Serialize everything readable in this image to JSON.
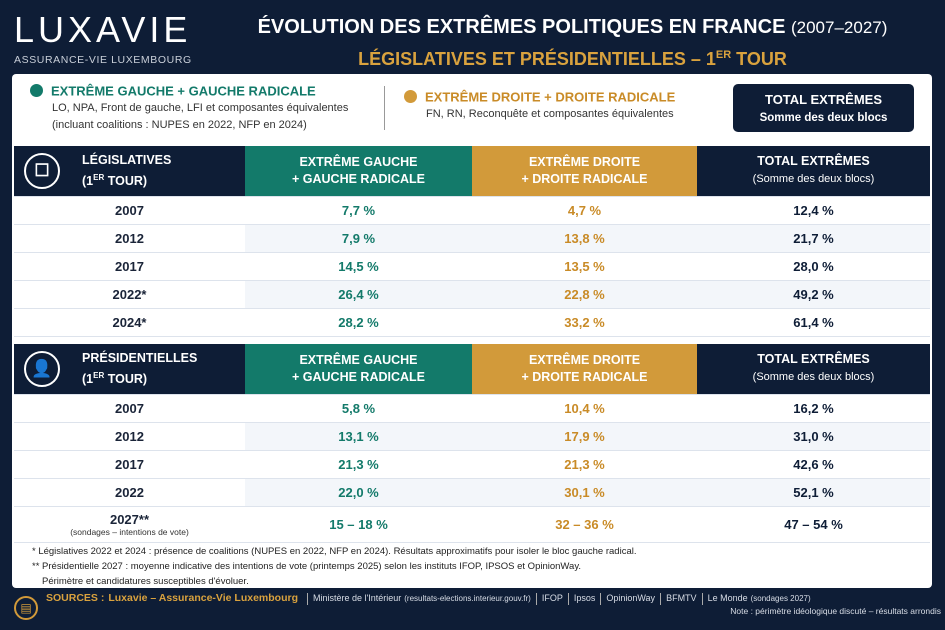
{
  "header": {
    "logo": "LUXAVIE",
    "logo_sub": "ASSURANCE-VIE LUXEMBOURG",
    "title": "ÉVOLUTION DES EXTRÊMES POLITIQUES EN FRANCE",
    "title_years": "(2007–2027)",
    "subtitle": "LÉGISLATIVES ET PRÉSIDENTIELLES – 1",
    "subtitle_sup": "ER",
    "subtitle_end": " TOUR"
  },
  "legend": {
    "left": {
      "title": "EXTRÊME GAUCHE + GAUCHE RADICALE",
      "desc1": "LO, NPA, Front de gauche, LFI et composantes équivalentes",
      "desc2": "(incluant coalitions : NUPES en 2022, NFP en 2024)",
      "color": "#137a6a"
    },
    "right": {
      "title": "EXTRÊME DROITE + DROITE RADICALE",
      "desc1": "FN, RN, Reconquête et composantes équivalentes",
      "color": "#d29a3a"
    },
    "total": {
      "title": "TOTAL EXTRÊMES",
      "desc": "Somme des deux blocs"
    }
  },
  "columns": {
    "left1": "EXTRÊME GAUCHE",
    "left2": "+ GAUCHE RADICALE",
    "right1": "EXTRÊME DROITE",
    "right2": "+ DROITE RADICALE",
    "total1": "TOTAL EXTRÊMES",
    "total2": "(Somme des deux blocs)"
  },
  "legislatives": {
    "label": "LÉGISLATIVES",
    "label2": "(1",
    "sup": "ER",
    "label3": " TOUR)",
    "rows": [
      {
        "year": "2007",
        "left": "7,7 %",
        "right": "4,7 %",
        "total": "12,4 %"
      },
      {
        "year": "2012",
        "left": "7,9 %",
        "right": "13,8 %",
        "total": "21,7 %"
      },
      {
        "year": "2017",
        "left": "14,5 %",
        "right": "13,5 %",
        "total": "28,0 %"
      },
      {
        "year": "2022*",
        "left": "26,4 %",
        "right": "22,8 %",
        "total": "49,2 %"
      },
      {
        "year": "2024*",
        "left": "28,2 %",
        "right": "33,2 %",
        "total": "61,4 %"
      }
    ]
  },
  "presidentielles": {
    "label": "PRÉSIDENTIELLES",
    "label2": "(1",
    "sup": "ER",
    "label3": " TOUR)",
    "rows": [
      {
        "year": "2007",
        "left": "5,8 %",
        "right": "10,4 %",
        "total": "16,2 %"
      },
      {
        "year": "2012",
        "left": "13,1 %",
        "right": "17,9 %",
        "total": "31,0 %"
      },
      {
        "year": "2017",
        "left": "21,3 %",
        "right": "21,3 %",
        "total": "42,6 %"
      },
      {
        "year": "2022",
        "left": "22,0 %",
        "right": "30,1 %",
        "total": "52,1 %"
      },
      {
        "year": "2027**",
        "note": "(sondages – intentions de vote)",
        "left": "15 – 18 %",
        "right": "32 – 36 %",
        "total": "47 – 54 %"
      }
    ]
  },
  "footnotes": [
    "* Législatives 2022 et 2024 : présence de coalitions (NUPES en 2022, NFP en 2024). Résultats approximatifs pour isoler le bloc gauche radical.",
    "** Présidentielle 2027 : moyenne indicative des intentions de vote (printemps 2025) selon les instituts IFOP, IPSOS et OpinionWay.",
    "Périmètre et candidatures susceptibles d'évoluer."
  ],
  "sources": {
    "label": "SOURCES :",
    "main": "Luxavie – Assurance-Vie Luxembourg",
    "items": [
      "Ministère de l'Intérieur",
      "IFOP",
      "Ipsos",
      "OpinionWay",
      "BFMTV",
      "Le Monde"
    ],
    "ministere_note": "(resultats-elections.interieur.gouv.fr)",
    "lemonde_note": "(sondages 2027)",
    "note": "Note : périmètre idéologique discuté – résultats arrondis"
  }
}
